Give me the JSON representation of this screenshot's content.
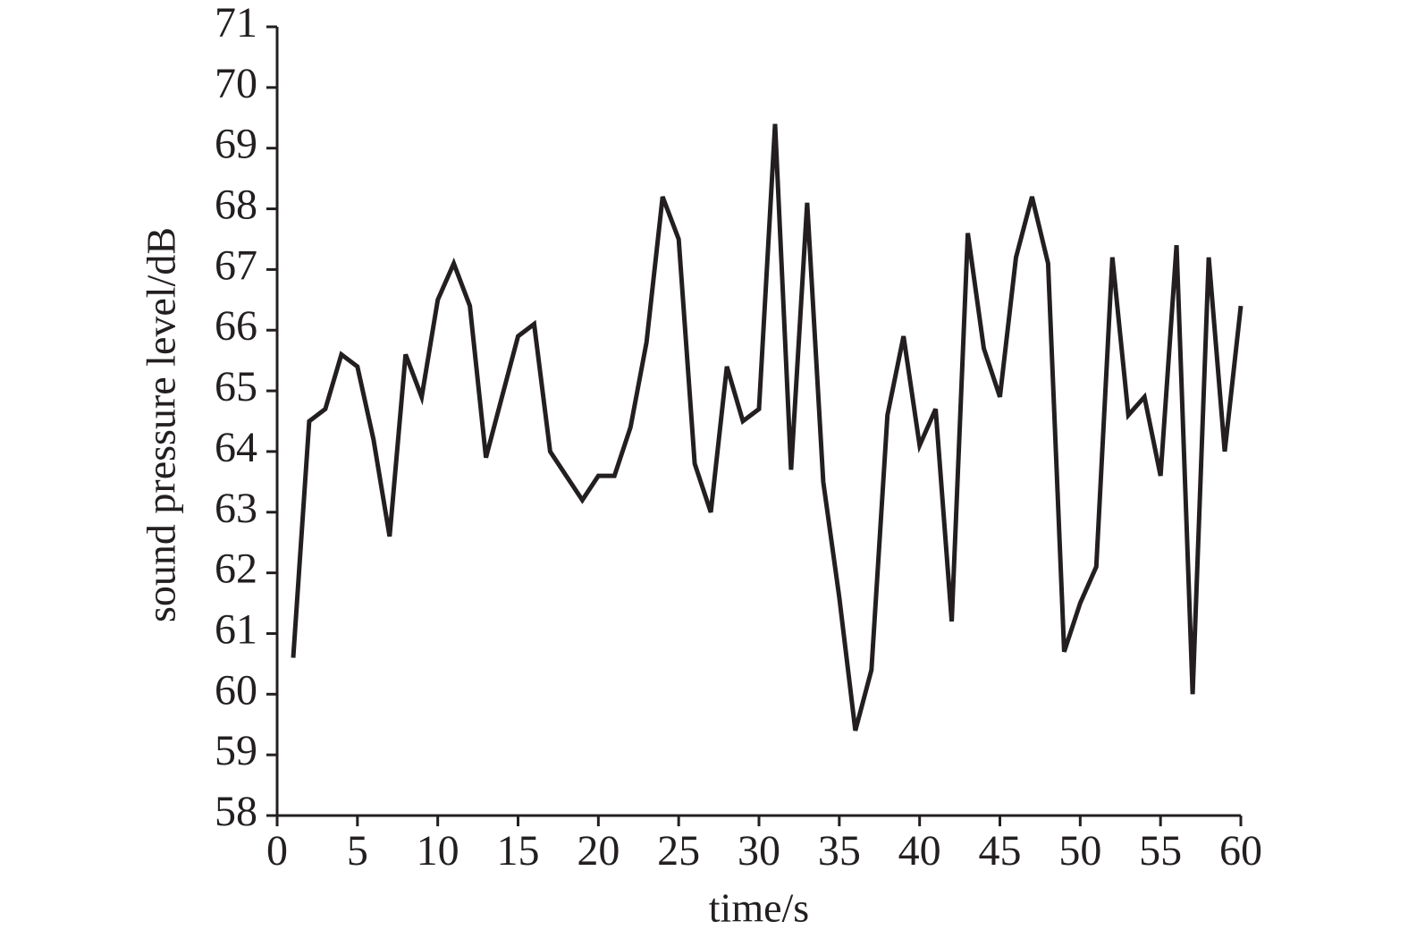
{
  "chart_data": {
    "type": "line",
    "x_label": "time/s",
    "y_label": "sound pressure level/dB",
    "x": [
      1,
      2,
      3,
      4,
      5,
      6,
      7,
      8,
      9,
      10,
      11,
      12,
      13,
      14,
      15,
      16,
      17,
      18,
      19,
      20,
      21,
      22,
      23,
      24,
      25,
      26,
      27,
      28,
      29,
      30,
      31,
      32,
      33,
      34,
      35,
      36,
      37,
      38,
      39,
      40,
      41,
      42,
      43,
      44,
      45,
      46,
      47,
      48,
      49,
      50,
      51,
      52,
      53,
      54,
      55,
      56,
      57,
      58,
      59,
      60
    ],
    "series": [
      {
        "name": "sound pressure level",
        "color": "#231f20",
        "values": [
          60.6,
          64.5,
          64.7,
          65.6,
          65.4,
          64.2,
          62.6,
          65.6,
          64.9,
          66.5,
          67.1,
          66.4,
          63.9,
          64.9,
          65.9,
          66.1,
          64.0,
          63.6,
          63.2,
          63.6,
          63.6,
          64.4,
          65.8,
          68.2,
          67.5,
          63.8,
          63.0,
          65.4,
          64.5,
          64.7,
          69.4,
          63.7,
          68.1,
          63.5,
          61.6,
          59.4,
          60.4,
          64.6,
          65.9,
          64.1,
          64.7,
          61.2,
          67.6,
          65.7,
          64.9,
          67.2,
          68.2,
          67.1,
          60.7,
          61.5,
          62.1,
          67.2,
          64.6,
          64.9,
          63.6,
          67.4,
          60.0,
          67.2,
          64.0,
          66.4
        ]
      }
    ],
    "xlim": [
      0,
      60
    ],
    "xticks": [
      0,
      5,
      10,
      15,
      20,
      25,
      30,
      35,
      40,
      45,
      50,
      55,
      60
    ],
    "ylim": [
      58,
      71
    ],
    "yticks": [
      58,
      59,
      60,
      61,
      62,
      63,
      64,
      65,
      66,
      67,
      68,
      69,
      70,
      71
    ]
  }
}
